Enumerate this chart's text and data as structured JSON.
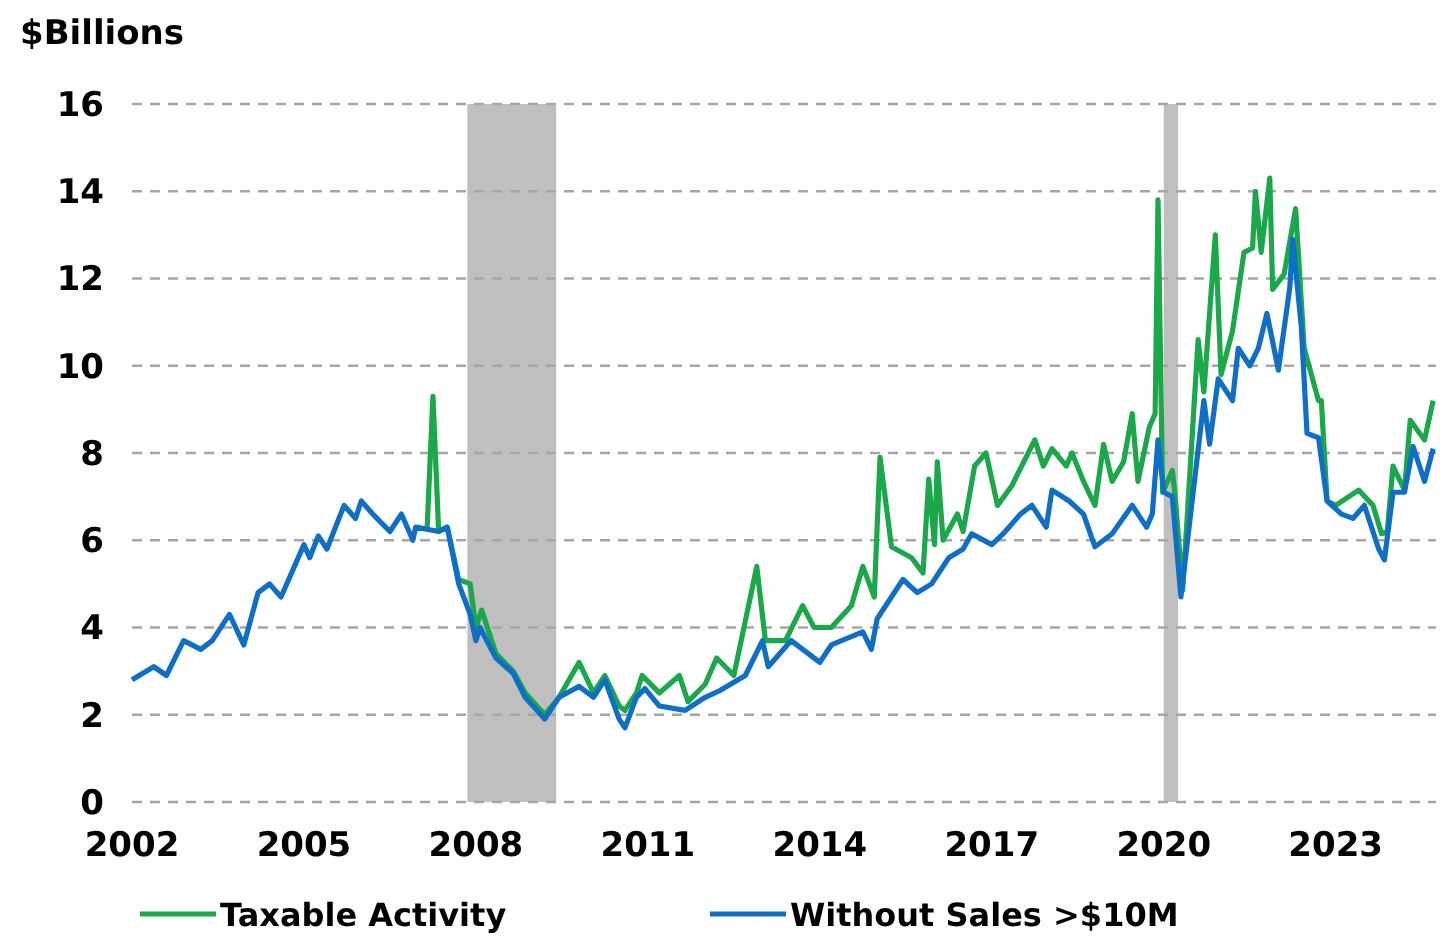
{
  "chart_data": {
    "type": "line",
    "ylabel": "$Billions",
    "xlim": [
      2002,
      2024.75
    ],
    "xticks": [
      2002,
      2005,
      2008,
      2011,
      2014,
      2017,
      2020,
      2023
    ],
    "ylim": [
      0,
      16
    ],
    "yticks": [
      0,
      2,
      4,
      6,
      8,
      10,
      12,
      14,
      16
    ],
    "grid": "y",
    "legend": "bottom",
    "line_style": "solid",
    "marker": "none",
    "bands": [
      {
        "axis": "x",
        "from": 2007.85,
        "to": 2009.4,
        "color": "#bfbfbf"
      },
      {
        "axis": "x",
        "from": 2020.0,
        "to": 2020.25,
        "color": "#bfbfbf"
      }
    ],
    "series": [
      {
        "name": "Taxable Activity",
        "color": "#1aa84a",
        "x": [
          2007.15,
          2007.25,
          2007.35,
          2007.5,
          2007.7,
          2007.9,
          2008.0,
          2008.1,
          2008.35,
          2008.65,
          2008.86,
          2009.2,
          2009.45,
          2009.8,
          2010.05,
          2010.25,
          2010.5,
          2010.6,
          2010.8,
          2010.9,
          2011.2,
          2011.55,
          2011.7,
          2012.0,
          2012.2,
          2012.5,
          2012.9,
          2013.05,
          2013.4,
          2013.7,
          2013.9,
          2014.2,
          2014.55,
          2014.75,
          2014.95,
          2015.05,
          2015.25,
          2015.6,
          2015.8,
          2015.9,
          2016.0,
          2016.05,
          2016.15,
          2016.4,
          2016.5,
          2016.7,
          2016.9,
          2017.1,
          2017.35,
          2017.75,
          2017.9,
          2018.05,
          2018.3,
          2018.4,
          2018.6,
          2018.8,
          2018.95,
          2019.1,
          2019.3,
          2019.45,
          2019.55,
          2019.75,
          2019.85,
          2019.9,
          2019.98,
          2020.15,
          2020.2,
          2020.33,
          2020.6,
          2020.7,
          2020.9,
          2021.0,
          2021.2,
          2021.4,
          2021.55,
          2021.6,
          2021.7,
          2021.85,
          2021.9,
          2022.1,
          2022.3,
          2022.45,
          2022.7,
          2022.75,
          2022.85,
          2023.0,
          2023.4,
          2023.65,
          2023.8,
          2023.9,
          2024.0,
          2024.2,
          2024.3,
          2024.55,
          2024.7
        ],
        "values": [
          6.3,
          9.3,
          6.2,
          6.3,
          5.1,
          5.0,
          4.0,
          4.4,
          3.4,
          3.0,
          2.5,
          2.0,
          2.4,
          3.2,
          2.5,
          2.9,
          2.2,
          2.1,
          2.5,
          2.9,
          2.5,
          2.9,
          2.3,
          2.7,
          3.3,
          2.9,
          5.4,
          3.7,
          3.7,
          4.5,
          4.0,
          4.0,
          4.5,
          5.4,
          4.7,
          7.9,
          5.85,
          5.6,
          5.25,
          7.4,
          5.9,
          7.8,
          6.0,
          6.6,
          6.2,
          7.7,
          8.0,
          6.8,
          7.25,
          8.3,
          7.7,
          8.1,
          7.7,
          8.0,
          7.35,
          6.8,
          8.2,
          7.35,
          7.8,
          8.9,
          7.35,
          8.6,
          8.9,
          13.8,
          7.1,
          7.6,
          7.0,
          4.85,
          10.6,
          9.4,
          13.0,
          9.8,
          10.8,
          12.6,
          12.7,
          14.0,
          12.6,
          14.3,
          11.75,
          12.1,
          13.6,
          10.4,
          9.2,
          9.2,
          6.9,
          6.8,
          7.15,
          6.8,
          6.15,
          6.2,
          7.7,
          7.15,
          8.75,
          8.3,
          9.2
        ]
      },
      {
        "name": "Without Sales >$10M",
        "color": "#0f6fc6",
        "x": [
          2002.0,
          2002.38,
          2002.6,
          2002.9,
          2003.2,
          2003.4,
          2003.7,
          2003.95,
          2004.2,
          2004.4,
          2004.6,
          2005.0,
          2005.1,
          2005.25,
          2005.4,
          2005.7,
          2005.9,
          2006.0,
          2006.2,
          2006.5,
          2006.7,
          2006.9,
          2006.95,
          2007.35,
          2007.5,
          2007.7,
          2007.9,
          2008.0,
          2008.07,
          2008.35,
          2008.65,
          2008.86,
          2009.2,
          2009.45,
          2009.8,
          2010.05,
          2010.25,
          2010.5,
          2010.6,
          2010.8,
          2010.95,
          2011.2,
          2011.65,
          2012.0,
          2012.25,
          2012.7,
          2013.0,
          2013.1,
          2013.5,
          2014.0,
          2014.2,
          2014.75,
          2014.9,
          2015.0,
          2015.45,
          2015.7,
          2015.95,
          2016.25,
          2016.5,
          2016.65,
          2017.0,
          2017.2,
          2017.5,
          2017.7,
          2017.95,
          2018.05,
          2018.35,
          2018.6,
          2018.8,
          2019.1,
          2019.45,
          2019.7,
          2019.8,
          2019.9,
          2020.0,
          2020.15,
          2020.3,
          2020.5,
          2020.7,
          2020.8,
          2020.95,
          2021.2,
          2021.3,
          2021.5,
          2021.65,
          2021.8,
          2022.0,
          2022.2,
          2022.25,
          2022.4,
          2022.5,
          2022.7,
          2022.85,
          2023.1,
          2023.3,
          2023.5,
          2023.75,
          2023.85,
          2024.0,
          2024.2,
          2024.35,
          2024.55,
          2024.7
        ],
        "values": [
          2.8,
          3.1,
          2.9,
          3.7,
          3.5,
          3.7,
          4.3,
          3.6,
          4.8,
          5.0,
          4.7,
          5.9,
          5.6,
          6.1,
          5.8,
          6.8,
          6.5,
          6.9,
          6.6,
          6.2,
          6.6,
          6.0,
          6.3,
          6.2,
          6.3,
          5.0,
          4.3,
          3.7,
          4.0,
          3.3,
          2.95,
          2.4,
          1.9,
          2.4,
          2.65,
          2.4,
          2.8,
          1.9,
          1.7,
          2.4,
          2.6,
          2.2,
          2.1,
          2.4,
          2.55,
          2.9,
          3.7,
          3.1,
          3.7,
          3.2,
          3.6,
          3.9,
          3.5,
          4.2,
          5.1,
          4.8,
          5.0,
          5.6,
          5.8,
          6.15,
          5.9,
          6.15,
          6.6,
          6.8,
          6.3,
          7.15,
          6.9,
          6.6,
          5.85,
          6.15,
          6.8,
          6.3,
          6.6,
          8.3,
          7.1,
          7.0,
          4.7,
          6.95,
          9.2,
          8.2,
          9.7,
          9.2,
          10.4,
          10.0,
          10.4,
          11.2,
          9.9,
          11.8,
          12.9,
          10.9,
          8.45,
          8.35,
          6.9,
          6.6,
          6.5,
          6.8,
          5.8,
          5.55,
          7.1,
          7.1,
          8.15,
          7.35,
          8.1
        ]
      }
    ]
  }
}
